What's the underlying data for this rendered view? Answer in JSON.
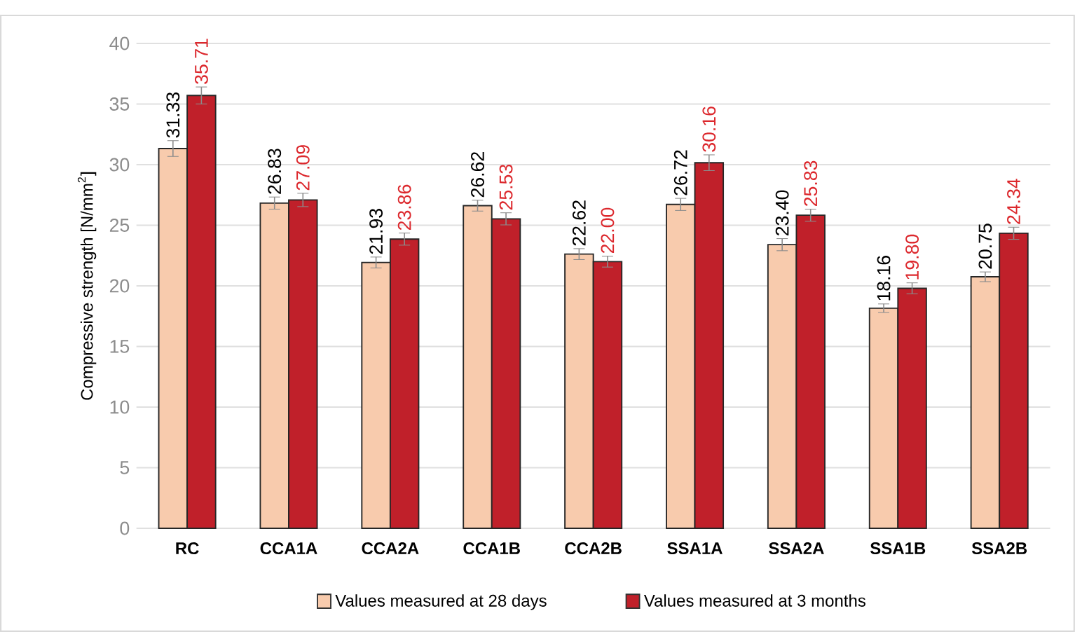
{
  "chart_data": {
    "type": "bar",
    "ylabel": "Compressive strength [N/mm$^{2}$]",
    "categories": [
      "RC",
      "CCA1A",
      "CCA2A",
      "CCA1B",
      "CCA2B",
      "SSA1A",
      "SSA2A",
      "SSA1B",
      "SSA2B"
    ],
    "series": [
      {
        "name": "Values measured at 28 days",
        "color": "#f8cbad",
        "values": [
          31.33,
          26.83,
          21.93,
          26.62,
          22.62,
          26.72,
          23.4,
          18.16,
          20.75
        ],
        "errors": [
          0.65,
          0.5,
          0.45,
          0.45,
          0.45,
          0.5,
          0.5,
          0.35,
          0.4
        ],
        "value_labels": [
          "31.33",
          "26.83",
          "21.93",
          "26.62",
          "22.62",
          "26.72",
          "23.40",
          "18.16",
          "20.75"
        ]
      },
      {
        "name": "Values measured at 3 months",
        "color": "#c0202a",
        "values": [
          35.71,
          27.09,
          23.86,
          25.53,
          22.0,
          30.16,
          25.83,
          19.8,
          24.34
        ],
        "errors": [
          0.7,
          0.55,
          0.5,
          0.5,
          0.45,
          0.65,
          0.5,
          0.45,
          0.5
        ],
        "value_labels": [
          "35.71",
          "27.09",
          "23.86",
          "25.53",
          "22.00",
          "30.16",
          "25.83",
          "19.80",
          "24.34"
        ]
      }
    ],
    "ylim": [
      0,
      40
    ],
    "yticks": [
      0,
      5,
      10,
      15,
      20,
      25,
      30,
      35,
      40
    ],
    "grid": "y",
    "legend": "bottom"
  }
}
